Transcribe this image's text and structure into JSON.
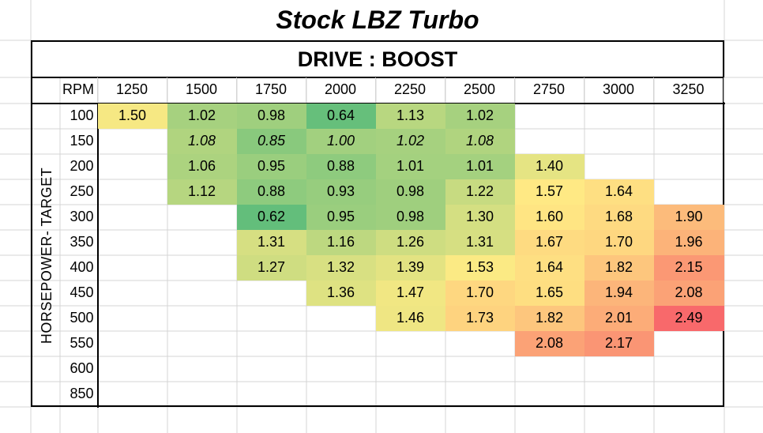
{
  "title": "Stock LBZ Turbo",
  "subtitle": "DRIVE : BOOST",
  "row_axis_label": "HORSEPOWER- TARGET",
  "col_axis_label": "RPM",
  "colors": {
    "green_dark": "#63be7b",
    "green_mid": "#a0d283",
    "green_light": "#c1dc84",
    "yellow_green": "#d9e286",
    "yellow": "#ffe884",
    "light_orange": "#fed981",
    "orange": "#fdbd7c",
    "dark_orange": "#fba277",
    "red": "#f8696b"
  },
  "chart_data": {
    "type": "heatmap",
    "title": "Stock LBZ Turbo",
    "subtitle": "DRIVE : BOOST",
    "xlabel": "RPM",
    "ylabel": "HORSEPOWER- TARGET",
    "x": [
      "1250",
      "1500",
      "1750",
      "2000",
      "2250",
      "2500",
      "2750",
      "3000",
      "3250"
    ],
    "y": [
      "100",
      "150",
      "200",
      "250",
      "300",
      "350",
      "400",
      "450",
      "500",
      "550",
      "600",
      "850"
    ],
    "values": [
      [
        "1.50",
        "1.02",
        "0.98",
        "0.64",
        "1.13",
        "1.02",
        "",
        "",
        ""
      ],
      [
        "",
        "1.08",
        "0.85",
        "1.00",
        "1.02",
        "1.08",
        "",
        "",
        ""
      ],
      [
        "",
        "1.06",
        "0.95",
        "0.88",
        "1.01",
        "1.01",
        "1.40",
        "",
        ""
      ],
      [
        "",
        "1.12",
        "0.88",
        "0.93",
        "0.98",
        "1.22",
        "1.57",
        "1.64",
        ""
      ],
      [
        "",
        "",
        "0.62",
        "0.95",
        "0.98",
        "1.30",
        "1.60",
        "1.68",
        "1.90"
      ],
      [
        "",
        "",
        "1.31",
        "1.16",
        "1.26",
        "1.31",
        "1.67",
        "1.70",
        "1.96"
      ],
      [
        "",
        "",
        "1.27",
        "1.32",
        "1.39",
        "1.53",
        "1.64",
        "1.82",
        "2.15"
      ],
      [
        "",
        "",
        "",
        "1.36",
        "1.47",
        "1.70",
        "1.65",
        "1.94",
        "2.08"
      ],
      [
        "",
        "",
        "",
        "",
        "1.46",
        "1.73",
        "1.82",
        "2.01",
        "2.49"
      ],
      [
        "",
        "",
        "",
        "",
        "",
        "",
        "2.08",
        "2.17",
        ""
      ],
      [
        "",
        "",
        "",
        "",
        "",
        "",
        "",
        "",
        ""
      ],
      [
        "",
        "",
        "",
        "",
        "",
        "",
        "",
        "",
        ""
      ]
    ],
    "italic_rows": [
      "150"
    ],
    "color_scale": {
      "min": 0.62,
      "min_color": "#63be7b",
      "mid_color": "#ffeb84",
      "max": 2.49,
      "max_color": "#f8696b"
    }
  }
}
